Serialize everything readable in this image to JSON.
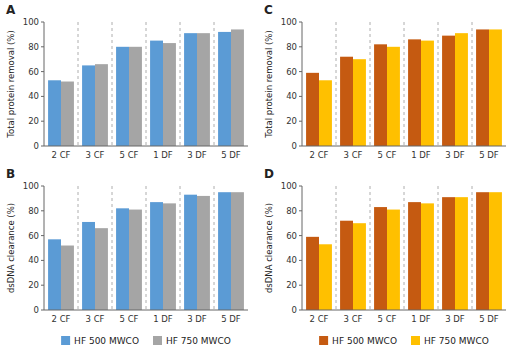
{
  "chart_data": [
    {
      "type": "bar",
      "title": "A",
      "categories": [
        "2 CF",
        "3 CF",
        "5 CF",
        "1 DF",
        "3 DF",
        "5 DF"
      ],
      "series": [
        {
          "color": "#5B9BD5",
          "values": [
            53,
            65,
            80,
            85,
            91,
            92
          ]
        },
        {
          "color": "#A5A5A5",
          "values": [
            52,
            66,
            80,
            83,
            91,
            94
          ]
        }
      ],
      "ylabel": "Total protein removal (%)",
      "ylim": [
        0,
        100
      ],
      "yticks": [
        0,
        20,
        40,
        60,
        80,
        100
      ],
      "grid": false
    },
    {
      "type": "bar",
      "title": "B",
      "categories": [
        "2 CF",
        "3 CF",
        "5 CF",
        "1 DF",
        "3 DF",
        "5 DF"
      ],
      "series": [
        {
          "name": "HF 500 MWCO",
          "color": "#5B9BD5",
          "values": [
            57,
            71,
            82,
            87,
            93,
            95
          ]
        },
        {
          "name": "HF 750 MWCO",
          "color": "#A5A5A5",
          "values": [
            52,
            66,
            81,
            86,
            92,
            95
          ]
        }
      ],
      "ylabel": "dsDNA clearance (%)",
      "ylim": [
        0,
        100
      ],
      "yticks": [
        0,
        20,
        40,
        60,
        80,
        100
      ],
      "grid": false,
      "legend": "bottom"
    },
    {
      "type": "bar",
      "title": "C",
      "categories": [
        "2 CF",
        "3 CF",
        "5 CF",
        "1 DF",
        "3 DF",
        "5 DF"
      ],
      "series": [
        {
          "color": "#C55A11",
          "values": [
            59,
            72,
            82,
            86,
            89,
            94
          ]
        },
        {
          "color": "#FFC000",
          "values": [
            53,
            70,
            80,
            85,
            91,
            94
          ]
        }
      ],
      "ylabel": "Total protein removal (%)",
      "ylim": [
        0,
        100
      ],
      "yticks": [
        0,
        20,
        40,
        60,
        80,
        100
      ],
      "grid": false
    },
    {
      "type": "bar",
      "title": "D",
      "categories": [
        "2 CF",
        "3 CF",
        "5 CF",
        "1 DF",
        "3 DF",
        "5 DF"
      ],
      "series": [
        {
          "name": "HF 500 MWCO",
          "color": "#C55A11",
          "values": [
            59,
            72,
            83,
            87,
            91,
            95
          ]
        },
        {
          "name": "HF 750 MWCO",
          "color": "#FFC000",
          "values": [
            53,
            70,
            81,
            86,
            91,
            95
          ]
        }
      ],
      "ylabel": "dsDNA clearance (%)",
      "ylim": [
        0,
        100
      ],
      "yticks": [
        0,
        20,
        40,
        60,
        80,
        100
      ],
      "grid": false,
      "legend": "bottom"
    }
  ]
}
